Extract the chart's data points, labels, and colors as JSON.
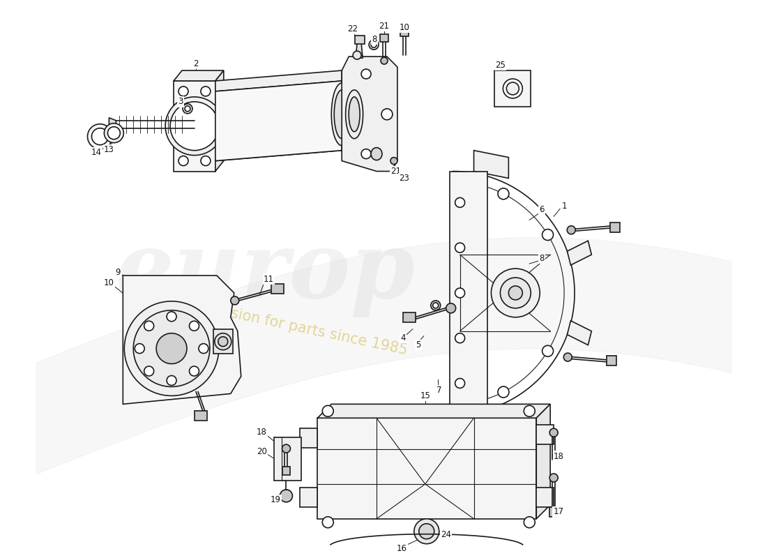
{
  "background_color": "#ffffff",
  "line_color": "#1a1a1a",
  "label_color": "#111111",
  "label_fontsize": 8.5,
  "fig_width": 11.0,
  "fig_height": 8.0,
  "dpi": 100,
  "watermark_alpha1": 0.18,
  "watermark_alpha2": 0.38
}
